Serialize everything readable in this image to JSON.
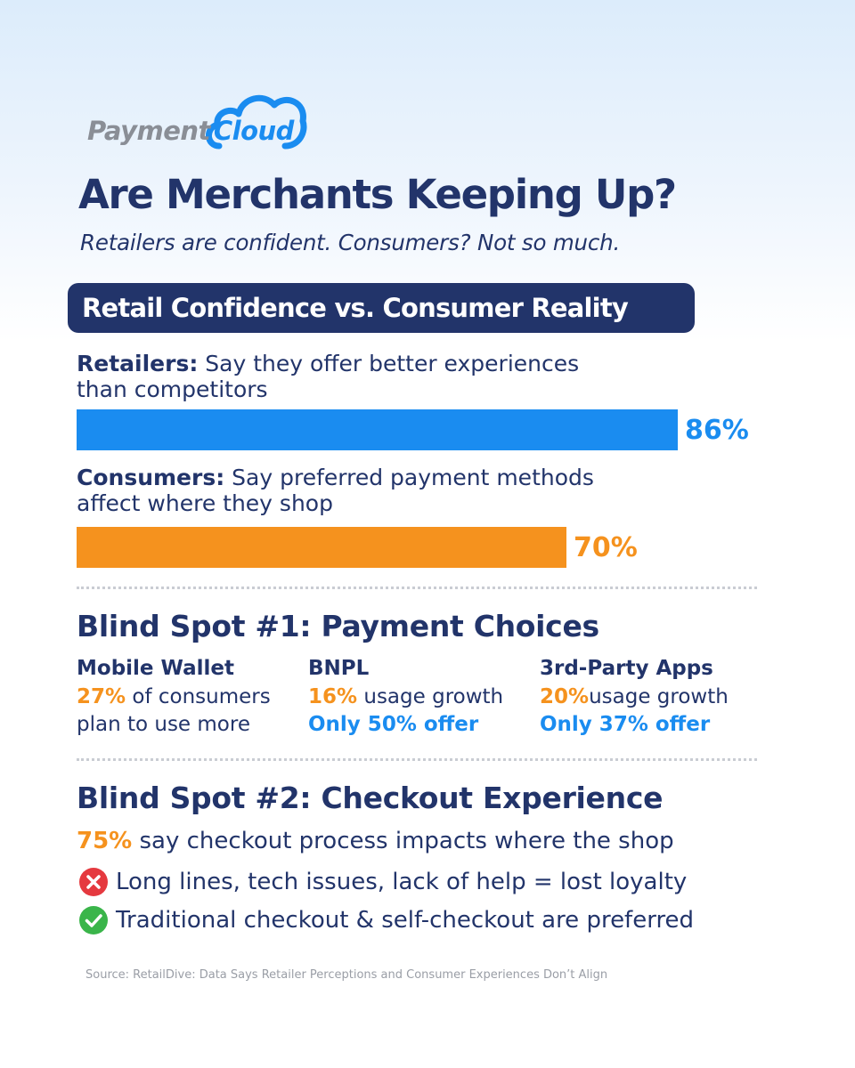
{
  "logo": {
    "word1": "Payment",
    "word2": "Cloud",
    "icon": "cloud-icon"
  },
  "header": {
    "title": "Are Merchants Keeping Up?",
    "subtitle": "Retailers are confident. Consumers? Not so much."
  },
  "banner": {
    "label": "Retail Confidence vs. Consumer Reality"
  },
  "stats": [
    {
      "who": "Retailers:",
      "line1": " Say they offer better experiences",
      "line2": "than competitors",
      "percent_label": "86%",
      "value": 86,
      "color": "#1a8cf0"
    },
    {
      "who": "Consumers:",
      "line1": " Say preferred payment methods",
      "line2": "affect where they shop",
      "percent_label": "70%",
      "value": 70,
      "color": "#f5921e"
    }
  ],
  "blind_spot_1": {
    "title": "Blind Spot #1: Payment Choices",
    "columns": [
      {
        "heading": "Mobile Wallet",
        "pct": "27%",
        "rest": " of consumers",
        "line2": "plan to use more",
        "line2_style": "plain"
      },
      {
        "heading": "BNPL",
        "pct": "16%",
        "rest": " usage growth",
        "line2": "Only 50% offer",
        "line2_style": "blue"
      },
      {
        "heading": "3rd-Party Apps",
        "pct": "20%",
        "rest": "usage growth",
        "line2": "Only 37% offer",
        "line2_style": "blue"
      }
    ]
  },
  "blind_spot_2": {
    "title": "Blind Spot #2: Checkout Experience",
    "stat_pct": "75%",
    "stat_rest": " say checkout process impacts where the shop",
    "bullets": [
      {
        "icon": "x-circle-icon",
        "text": "Long lines, tech issues, lack of help = lost loyalty"
      },
      {
        "icon": "check-circle-icon",
        "text": "Traditional checkout & self-checkout are preferred"
      }
    ]
  },
  "source": "Source: RetailDive: Data Says Retailer Perceptions and Consumer Experiences Don’t Align",
  "colors": {
    "navy": "#22346a",
    "blue": "#1a8cf0",
    "orange": "#f5921e",
    "red": "#e5393f",
    "green": "#3ab54a"
  }
}
